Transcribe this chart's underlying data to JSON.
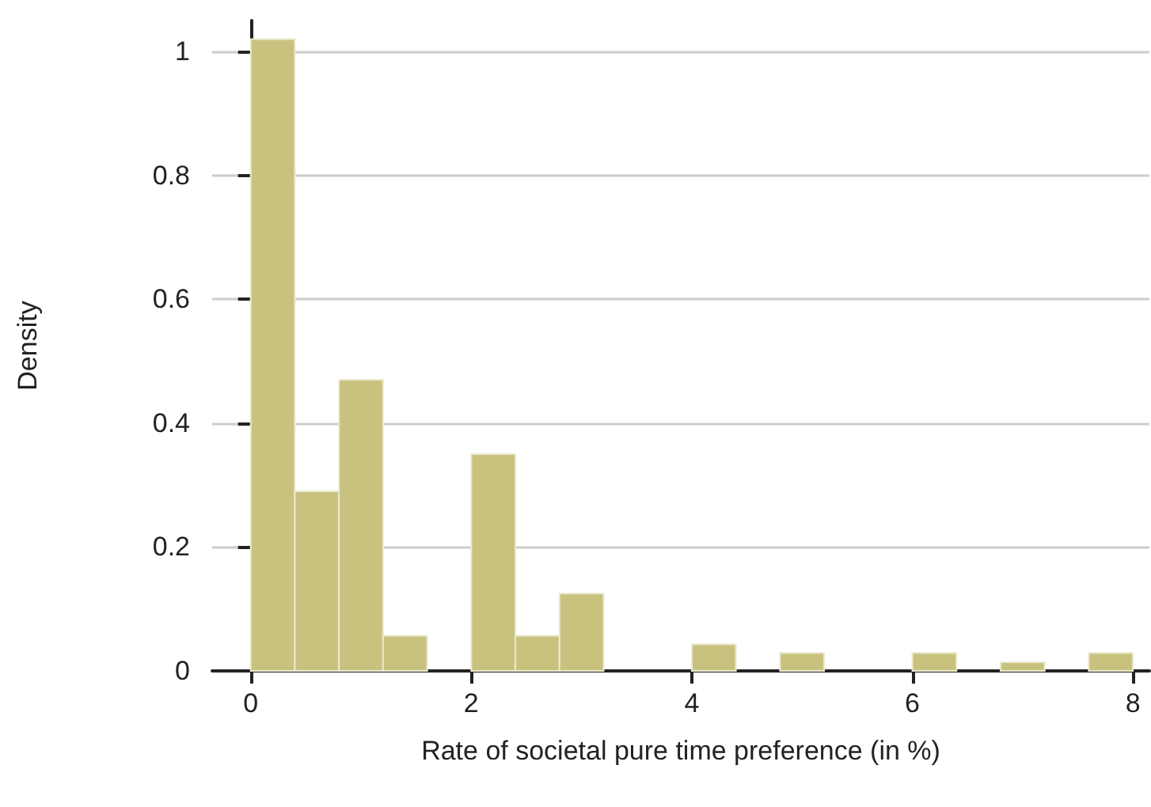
{
  "chart_data": {
    "type": "histogram",
    "xlabel": "Rate of societal pure time preference (in %)",
    "ylabel": "Density",
    "bins": [
      0,
      0.4,
      0.8,
      1.2,
      1.6,
      2,
      2.4,
      2.8,
      3.2,
      3.6,
      4,
      4.4,
      4.8,
      5.2,
      5.6,
      6,
      6.4,
      6.8,
      7.2,
      7.6,
      8
    ],
    "values": [
      1.02,
      0.29,
      0.47,
      0.057,
      0,
      0.35,
      0.057,
      0.125,
      0,
      0,
      0.043,
      0,
      0.029,
      0,
      0,
      0.029,
      0,
      0.014,
      0,
      0.029
    ],
    "color": "#c9c27f",
    "xlim": [
      -0.35,
      8.15
    ],
    "ylim": [
      0,
      1.05
    ],
    "xticks": [
      0,
      2,
      4,
      6,
      8
    ],
    "yticks": [
      0,
      0.2,
      0.4,
      0.6,
      0.8,
      1
    ],
    "grid": "y"
  }
}
